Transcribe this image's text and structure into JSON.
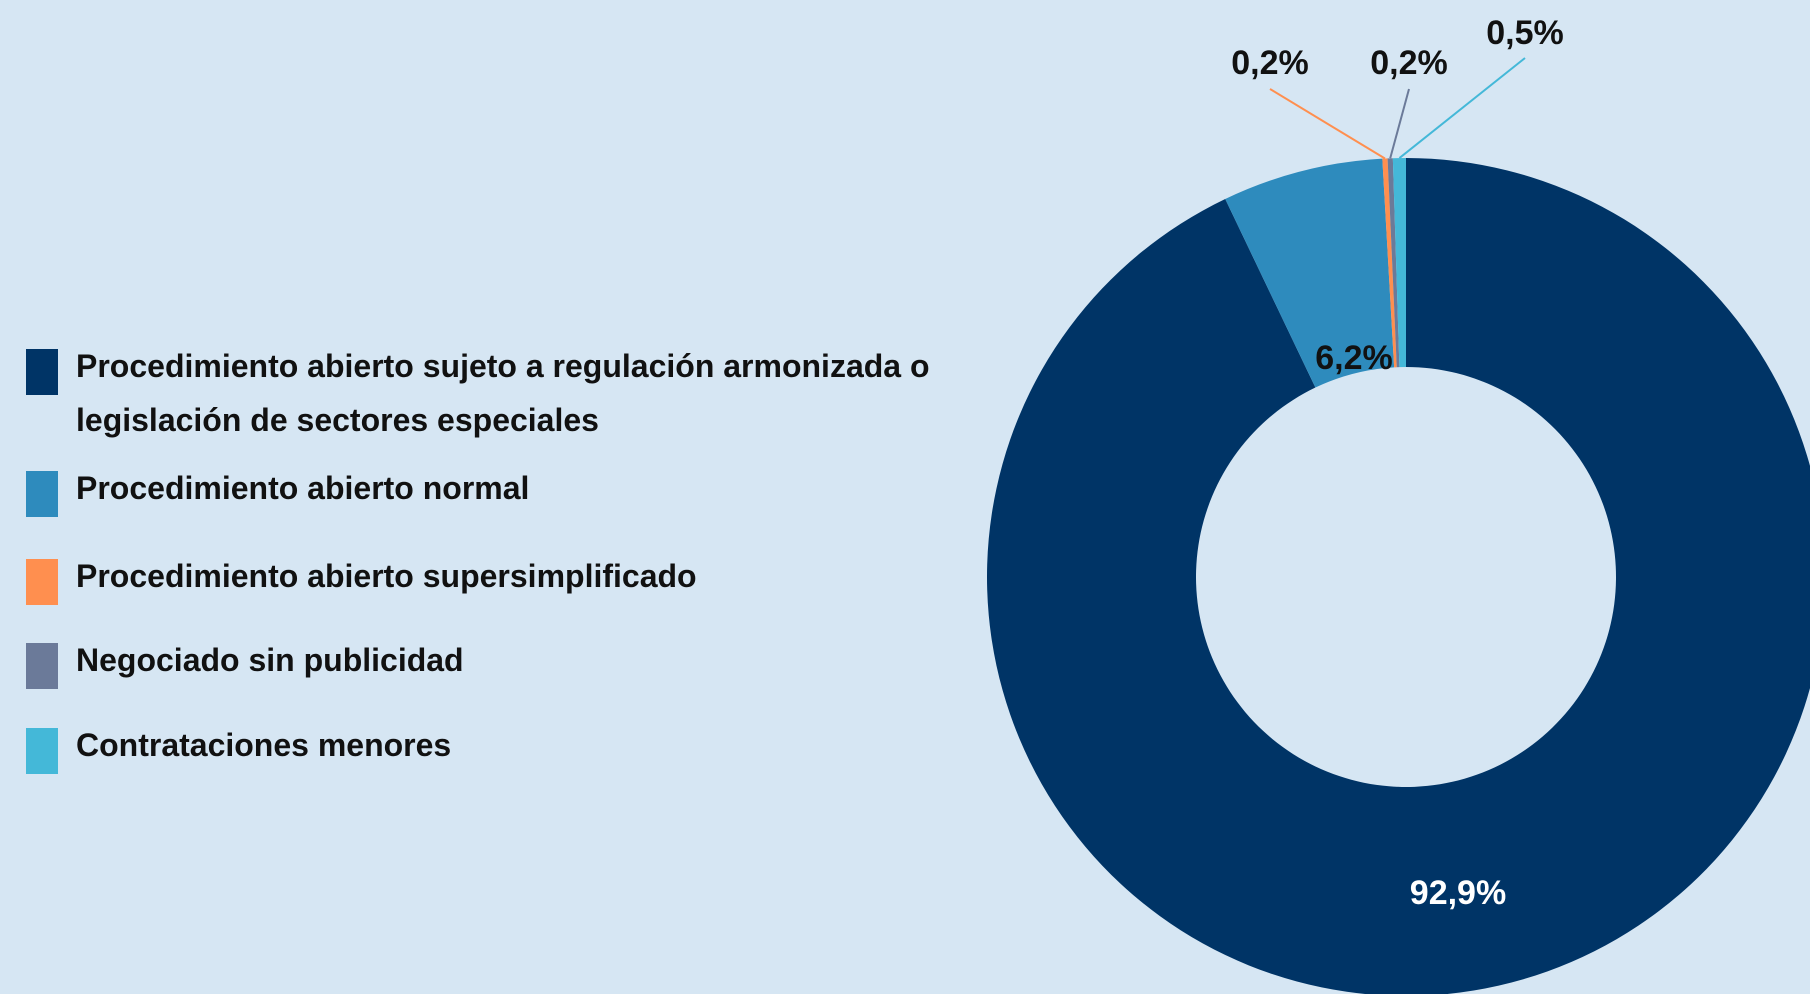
{
  "chart_data": {
    "type": "donut",
    "categories": [
      "Procedimiento abierto sujeto a regulación armonizada o legislación de sectores especiales",
      "Procedimiento abierto normal",
      "Procedimiento abierto supersimplificado",
      "Negociado sin publicidad",
      "Contrataciones menores"
    ],
    "values": [
      92.9,
      6.2,
      0.2,
      0.2,
      0.5
    ],
    "value_labels": [
      "92,9%",
      "6,2%",
      "0,2%",
      "0,2%",
      "0,5%"
    ],
    "colors": [
      "#003466",
      "#2e8bbd",
      "#ff8f4f",
      "#6b7a99",
      "#44b8d8"
    ],
    "legend": "left"
  }
}
